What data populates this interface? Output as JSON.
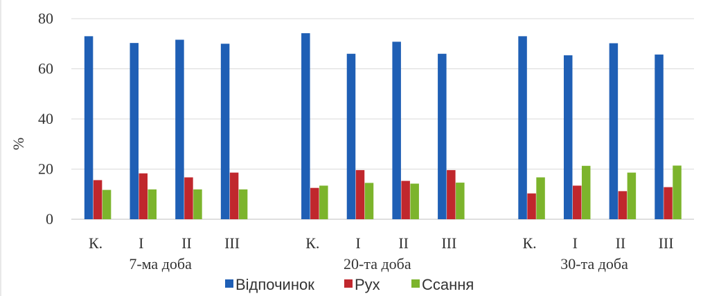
{
  "chart_data": {
    "type": "bar",
    "ylabel": "%",
    "ylim": [
      0,
      80
    ],
    "yticks": [
      0,
      20,
      40,
      60,
      80
    ],
    "grid": true,
    "legend_position": "bottom",
    "groups": [
      {
        "label": "7-ма доба",
        "categories": [
          "К.",
          "І",
          "ІІ",
          "ІІІ"
        ]
      },
      {
        "label": "20-та доба",
        "categories": [
          "К.",
          "І",
          "ІІ",
          "ІІІ"
        ]
      },
      {
        "label": "30-та доба",
        "categories": [
          "К.",
          "І",
          "ІІ",
          "ІІІ"
        ]
      }
    ],
    "series": [
      {
        "name": "Відпочинок",
        "color": "#1f5fb5",
        "values": [
          73,
          70.3,
          71.6,
          70,
          74.2,
          66,
          70.8,
          66,
          73,
          65.4,
          70.2,
          65.7
        ]
      },
      {
        "name": "Рух",
        "color": "#c0272d",
        "values": [
          15.6,
          18.3,
          16.7,
          18.6,
          12.5,
          19.6,
          15.3,
          19.6,
          10.3,
          13.4,
          11.2,
          12.8
        ]
      },
      {
        "name": "Ссання",
        "color": "#7cb42c",
        "values": [
          11.7,
          11.9,
          11.9,
          11.9,
          13.4,
          14.5,
          14.2,
          14.6,
          16.7,
          21.3,
          18.6,
          21.4
        ]
      }
    ]
  }
}
